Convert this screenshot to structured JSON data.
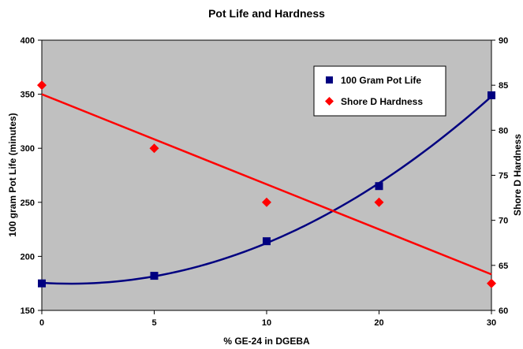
{
  "chart_data": {
    "type": "scatter",
    "title": "Pot Life and Hardness",
    "xlabel": "% GE-24 in DGEBA",
    "ylabel_left": "100 gram Pot Life (minutes)",
    "ylabel_right": "Shore D Hardness",
    "x_ticks": [
      "0",
      "5",
      "10",
      "20",
      "30"
    ],
    "y_left_ticks": [
      "150",
      "200",
      "250",
      "300",
      "350",
      "400"
    ],
    "y_right_ticks": [
      "60",
      "65",
      "70",
      "75",
      "80",
      "85",
      "90"
    ],
    "ylim_left": [
      150,
      400
    ],
    "ylim_right": [
      60,
      90
    ],
    "grid": false,
    "legend_position": "top-right",
    "plot_background": "#c0c0c0",
    "series": [
      {
        "name": "100 Gram Pot Life",
        "axis": "left",
        "marker": "square",
        "color": "#000080",
        "x": [
          "0",
          "5",
          "10",
          "20",
          "30"
        ],
        "y": [
          175,
          182,
          214,
          265,
          349
        ],
        "trendline": "polynomial"
      },
      {
        "name": "Shore D Hardness",
        "axis": "right",
        "marker": "diamond",
        "color": "#ff0000",
        "x": [
          "0",
          "5",
          "10",
          "20",
          "30"
        ],
        "y": [
          85,
          78,
          72,
          72,
          63
        ],
        "trendline": "linear"
      }
    ]
  }
}
